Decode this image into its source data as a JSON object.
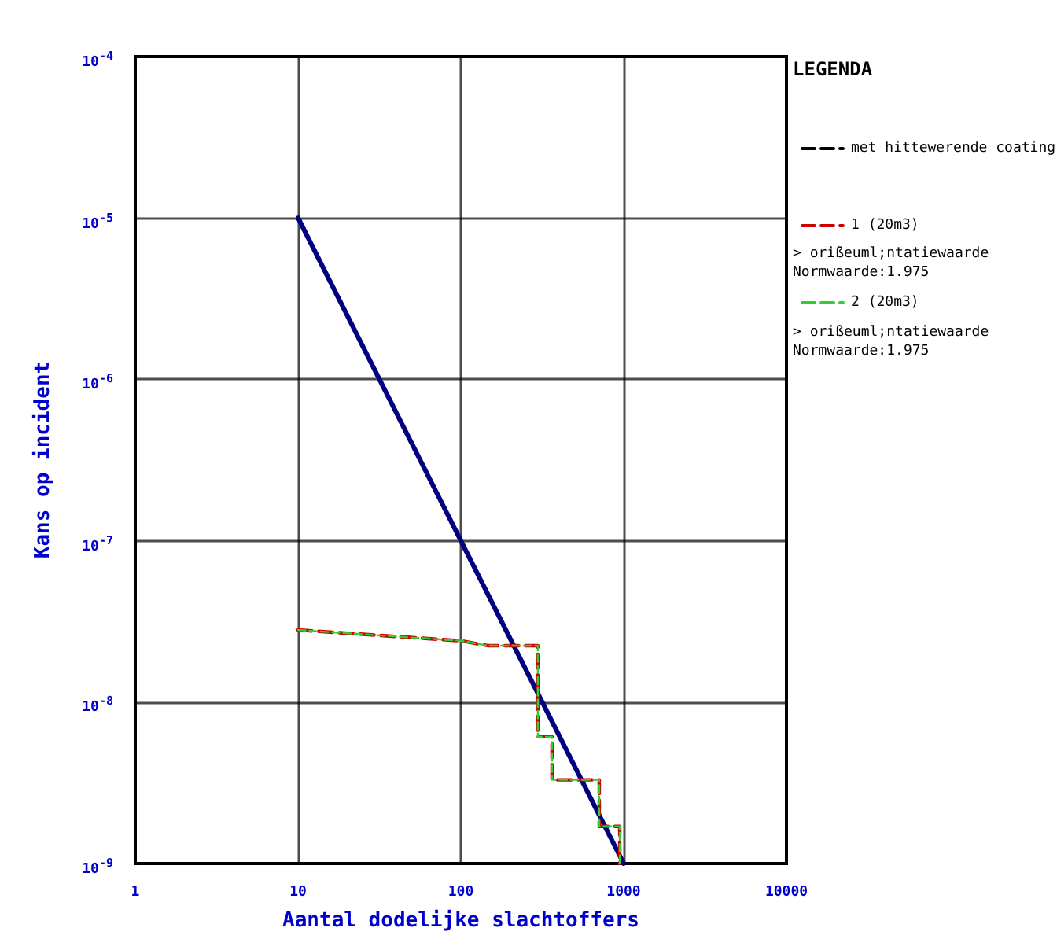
{
  "chart_data": {
    "type": "line",
    "xlabel": "Aantal dodelijke slachtoffers",
    "ylabel": "Kans op incident",
    "legend_title": "LEGENDA",
    "log": "xy",
    "xlim": [
      1,
      10000
    ],
    "xticks": [
      1,
      10,
      100,
      1000,
      10000
    ],
    "ylim": [
      1e-09,
      0.0001
    ],
    "yticks": [
      {
        "value": 1e-09,
        "label": "10$^{-9}$"
      },
      {
        "value": 1e-08,
        "label": "10$^{-8}$"
      },
      {
        "value": 1e-07,
        "label": "10$^{-7}$"
      },
      {
        "value": 1e-06,
        "label": "10$^{-6}$"
      },
      {
        "value": 1e-05,
        "label": "10$^{-5}$"
      },
      {
        "value": 0.0001,
        "label": "10$^{-4}$"
      }
    ],
    "grid": true,
    "legend": "right",
    "marker": "none",
    "line_style": "solid",
    "annotations": [
      "> orißeuml;ntatiewaarde",
      "Normwaarde:1.975",
      "> orißeuml;ntatiewaarde",
      "Normwaarde:1.975"
    ],
    "series": [
      {
        "color": "#000080",
        "x": [
          10,
          1000
        ],
        "values": [
          1e-05,
          1e-09
        ]
      },
      {
        "name": "met hittewerende coating",
        "color": "#000000",
        "line_style": "dashed"
      },
      {
        "name": "1 (20m3)",
        "color": "#cc0000",
        "line_style": "dashed",
        "x": [
          10,
          100,
          146,
          297,
          297,
          363,
          363,
          708,
          708,
          946,
          946
        ],
        "values": [
          2.8e-08,
          2.4e-08,
          2.24e-08,
          2.24e-08,
          6.1e-09,
          6.1e-09,
          3.3e-09,
          3.3e-09,
          1.7e-09,
          1.7e-09,
          1e-09
        ]
      },
      {
        "name": "2 (20m3)",
        "color": "#33cc33",
        "line_style": "dashed",
        "x": [
          10,
          100,
          146,
          297,
          297,
          363,
          363,
          708,
          708,
          946,
          946
        ],
        "values": [
          2.8e-08,
          2.4e-08,
          2.24e-08,
          2.24e-08,
          6.1e-09,
          6.1e-09,
          3.3e-09,
          3.3e-09,
          1.7e-09,
          1.7e-09,
          1e-09
        ]
      }
    ]
  }
}
